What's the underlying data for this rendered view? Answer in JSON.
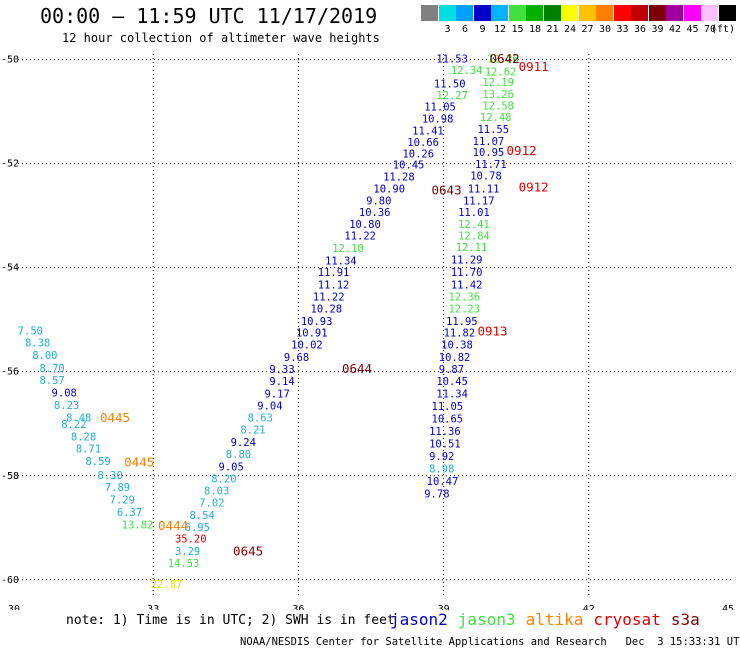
{
  "header": {
    "title": "00:00 – 11:59 UTC 11/17/2019",
    "subtitle": "12 hour collection of altimeter wave heights",
    "units_label": "(ft)"
  },
  "colorbar": [
    {
      "color": "#808080",
      "label": ""
    },
    {
      "color": "#00e0e0",
      "label": "3"
    },
    {
      "color": "#00a0ff",
      "label": "6"
    },
    {
      "color": "#0000c8",
      "label": "9"
    },
    {
      "color": "#00b4ff",
      "label": "12"
    },
    {
      "color": "#40e040",
      "label": "15"
    },
    {
      "color": "#00b000",
      "label": "18"
    },
    {
      "color": "#008000",
      "label": "21"
    },
    {
      "color": "#ffff00",
      "label": "24"
    },
    {
      "color": "#ffc000",
      "label": "27"
    },
    {
      "color": "#ff8000",
      "label": "30"
    },
    {
      "color": "#ff0000",
      "label": "33"
    },
    {
      "color": "#c00000",
      "label": "36"
    },
    {
      "color": "#800000",
      "label": "39"
    },
    {
      "color": "#a000a0",
      "label": "42"
    },
    {
      "color": "#ff00ff",
      "label": "45"
    },
    {
      "color": "#ffc0ff",
      "label": "70"
    },
    {
      "color": "#000000",
      "label": ""
    }
  ],
  "map": {
    "lon_range": [
      30,
      45
    ],
    "lat_range": [
      -60.35,
      -49.95
    ],
    "lon_ticks": [
      "30",
      "33",
      "36",
      "39",
      "42",
      "45"
    ],
    "lat_ticks": [
      "-50",
      "-52",
      "-54",
      "-56",
      "-58",
      "-60"
    ],
    "grid": "dotted"
  },
  "colors": {
    "jason2": "#0000c8",
    "jason3": "#40e040",
    "altika": "#ff8000",
    "cryosat": "#e00000",
    "s3a": "#800000",
    "cyan": "#20b0d0",
    "yellow": "#e0e000"
  },
  "points": [
    {
      "lon": 38.85,
      "lat": -50.0,
      "text": "11.53",
      "c": "jason2"
    },
    {
      "lon": 39.15,
      "lat": -50.22,
      "text": "12.34",
      "c": "jason3"
    },
    {
      "lon": 39.9,
      "lat": -50.0,
      "text": "12.26",
      "c": "jason3"
    },
    {
      "lon": 38.8,
      "lat": -50.48,
      "text": "11.50",
      "c": "jason2"
    },
    {
      "lon": 39.85,
      "lat": -50.25,
      "text": "12.62",
      "c": "jason3"
    },
    {
      "lon": 38.85,
      "lat": -50.7,
      "text": "12.27",
      "c": "jason3"
    },
    {
      "lon": 39.8,
      "lat": -50.45,
      "text": "12.19",
      "c": "jason3"
    },
    {
      "lon": 38.6,
      "lat": -50.92,
      "text": "11.05",
      "c": "jason2"
    },
    {
      "lon": 39.8,
      "lat": -50.68,
      "text": "13.26",
      "c": "jason3"
    },
    {
      "lon": 38.55,
      "lat": -51.15,
      "text": "10.98",
      "c": "jason2"
    },
    {
      "lon": 39.8,
      "lat": -50.9,
      "text": "12.58",
      "c": "jason3"
    },
    {
      "lon": 38.35,
      "lat": -51.38,
      "text": "11.41",
      "c": "jason2"
    },
    {
      "lon": 39.75,
      "lat": -51.12,
      "text": "12.48",
      "c": "jason3"
    },
    {
      "lon": 38.25,
      "lat": -51.6,
      "text": "10.66",
      "c": "jason2"
    },
    {
      "lon": 39.7,
      "lat": -51.35,
      "text": "11.55",
      "c": "jason2"
    },
    {
      "lon": 38.15,
      "lat": -51.82,
      "text": "10.26",
      "c": "jason2"
    },
    {
      "lon": 39.6,
      "lat": -51.58,
      "text": "11.07",
      "c": "jason2"
    },
    {
      "lon": 37.95,
      "lat": -52.04,
      "text": "10.45",
      "c": "jason2"
    },
    {
      "lon": 39.6,
      "lat": -51.8,
      "text": "10.95",
      "c": "jason2"
    },
    {
      "lon": 37.75,
      "lat": -52.27,
      "text": "11.28",
      "c": "jason2"
    },
    {
      "lon": 39.65,
      "lat": -52.03,
      "text": "11.71",
      "c": "jason2"
    },
    {
      "lon": 37.55,
      "lat": -52.5,
      "text": "10.90",
      "c": "jason2"
    },
    {
      "lon": 39.55,
      "lat": -52.25,
      "text": "10.78",
      "c": "jason2"
    },
    {
      "lon": 39.5,
      "lat": -52.5,
      "text": "11.11",
      "c": "jason2"
    },
    {
      "lon": 37.4,
      "lat": -52.73,
      "text": "9.80",
      "c": "jason2"
    },
    {
      "lon": 39.4,
      "lat": -52.73,
      "text": "11.17",
      "c": "jason2"
    },
    {
      "lon": 37.25,
      "lat": -52.95,
      "text": "10.36",
      "c": "jason2"
    },
    {
      "lon": 39.3,
      "lat": -52.95,
      "text": "11.01",
      "c": "jason2"
    },
    {
      "lon": 37.05,
      "lat": -53.18,
      "text": "10.80",
      "c": "jason2"
    },
    {
      "lon": 39.3,
      "lat": -53.18,
      "text": "12.41",
      "c": "jason3"
    },
    {
      "lon": 36.95,
      "lat": -53.4,
      "text": "11.22",
      "c": "jason2"
    },
    {
      "lon": 39.3,
      "lat": -53.4,
      "text": "12.84",
      "c": "jason3"
    },
    {
      "lon": 36.7,
      "lat": -53.64,
      "text": "12.10",
      "c": "jason3"
    },
    {
      "lon": 39.25,
      "lat": -53.62,
      "text": "12.11",
      "c": "jason3"
    },
    {
      "lon": 36.55,
      "lat": -53.88,
      "text": "11.34",
      "c": "jason2"
    },
    {
      "lon": 39.15,
      "lat": -53.86,
      "text": "11.29",
      "c": "jason2"
    },
    {
      "lon": 36.4,
      "lat": -54.1,
      "text": "11.91",
      "c": "jason2"
    },
    {
      "lon": 39.15,
      "lat": -54.1,
      "text": "11.70",
      "c": "jason2"
    },
    {
      "lon": 36.4,
      "lat": -54.34,
      "text": "11.12",
      "c": "jason2"
    },
    {
      "lon": 39.15,
      "lat": -54.34,
      "text": "11.42",
      "c": "jason2"
    },
    {
      "lon": 36.3,
      "lat": -54.57,
      "text": "11.22",
      "c": "jason2"
    },
    {
      "lon": 39.1,
      "lat": -54.57,
      "text": "12.36",
      "c": "jason3"
    },
    {
      "lon": 36.25,
      "lat": -54.8,
      "text": "10.28",
      "c": "jason2"
    },
    {
      "lon": 39.1,
      "lat": -54.8,
      "text": "12.23",
      "c": "jason3"
    },
    {
      "lon": 36.05,
      "lat": -55.04,
      "text": "10.93",
      "c": "jason2"
    },
    {
      "lon": 39.05,
      "lat": -55.04,
      "text": "11.95",
      "c": "jason2"
    },
    {
      "lon": 35.95,
      "lat": -55.27,
      "text": "10.91",
      "c": "jason2"
    },
    {
      "lon": 39.0,
      "lat": -55.27,
      "text": "11.82",
      "c": "jason2"
    },
    {
      "lon": 35.85,
      "lat": -55.5,
      "text": "10.02",
      "c": "jason2"
    },
    {
      "lon": 38.95,
      "lat": -55.5,
      "text": "10.38",
      "c": "jason2"
    },
    {
      "lon": 35.7,
      "lat": -55.74,
      "text": "9.68",
      "c": "jason2"
    },
    {
      "lon": 38.9,
      "lat": -55.74,
      "text": "10.82",
      "c": "jason2"
    },
    {
      "lon": 35.4,
      "lat": -55.97,
      "text": "9.33",
      "c": "jason2"
    },
    {
      "lon": 38.9,
      "lat": -55.97,
      "text": "9.87",
      "c": "jason2"
    },
    {
      "lon": 35.4,
      "lat": -56.2,
      "text": "9.14",
      "c": "jason2"
    },
    {
      "lon": 38.85,
      "lat": -56.2,
      "text": "10.45",
      "c": "jason2"
    },
    {
      "lon": 35.3,
      "lat": -56.44,
      "text": "9.17",
      "c": "jason2"
    },
    {
      "lon": 38.85,
      "lat": -56.44,
      "text": "11.34",
      "c": "jason2"
    },
    {
      "lon": 35.15,
      "lat": -56.67,
      "text": "9.04",
      "c": "jason2"
    },
    {
      "lon": 38.75,
      "lat": -56.68,
      "text": "11.05",
      "c": "jason2"
    },
    {
      "lon": 34.95,
      "lat": -56.9,
      "text": "8.63",
      "c": "cyan"
    },
    {
      "lon": 38.75,
      "lat": -56.92,
      "text": "10.65",
      "c": "jason2"
    },
    {
      "lon": 34.8,
      "lat": -57.13,
      "text": "8.21",
      "c": "cyan"
    },
    {
      "lon": 38.7,
      "lat": -57.16,
      "text": "11.36",
      "c": "jason2"
    },
    {
      "lon": 34.6,
      "lat": -57.37,
      "text": "9.24",
      "c": "jason2"
    },
    {
      "lon": 38.7,
      "lat": -57.4,
      "text": "10.51",
      "c": "jason2"
    },
    {
      "lon": 34.5,
      "lat": -57.6,
      "text": "8.80",
      "c": "cyan"
    },
    {
      "lon": 38.7,
      "lat": -57.64,
      "text": "9.92",
      "c": "jason2"
    },
    {
      "lon": 34.35,
      "lat": -57.84,
      "text": "9.05",
      "c": "jason2"
    },
    {
      "lon": 38.7,
      "lat": -57.88,
      "text": "8.98",
      "c": "cyan"
    },
    {
      "lon": 34.2,
      "lat": -58.07,
      "text": "8.20",
      "c": "cyan"
    },
    {
      "lon": 38.65,
      "lat": -58.12,
      "text": "10.47",
      "c": "jason2"
    },
    {
      "lon": 34.05,
      "lat": -58.3,
      "text": "8.03",
      "c": "cyan"
    },
    {
      "lon": 38.6,
      "lat": -58.36,
      "text": "9.78",
      "c": "jason2"
    },
    {
      "lon": 33.95,
      "lat": -58.53,
      "text": "7.02",
      "c": "cyan"
    },
    {
      "lon": 33.75,
      "lat": -58.77,
      "text": "8.54",
      "c": "cyan"
    },
    {
      "lon": 33.65,
      "lat": -59.0,
      "text": "6.95",
      "c": "cyan"
    },
    {
      "lon": 33.45,
      "lat": -59.23,
      "text": "35.20",
      "c": "cryosat"
    },
    {
      "lon": 33.45,
      "lat": -59.47,
      "text": "3.29",
      "c": "cyan"
    },
    {
      "lon": 33.3,
      "lat": -59.7,
      "text": "14.53",
      "c": "jason3"
    },
    {
      "lon": 32.95,
      "lat": -60.1,
      "text": "22.87",
      "c": "yellow"
    },
    {
      "lon": 30.2,
      "lat": -55.23,
      "text": "7.50",
      "c": "cyan"
    },
    {
      "lon": 30.35,
      "lat": -55.46,
      "text": "8.38",
      "c": "cyan"
    },
    {
      "lon": 30.5,
      "lat": -55.7,
      "text": "8.00",
      "c": "cyan"
    },
    {
      "lon": 30.65,
      "lat": -55.95,
      "text": "8.70",
      "c": "cyan"
    },
    {
      "lon": 30.65,
      "lat": -56.18,
      "text": "8.57",
      "c": "cyan"
    },
    {
      "lon": 30.9,
      "lat": -56.42,
      "text": "9.08",
      "c": "jason2"
    },
    {
      "lon": 30.95,
      "lat": -56.66,
      "text": "8.23",
      "c": "cyan"
    },
    {
      "lon": 31.2,
      "lat": -56.9,
      "text": "8.48",
      "c": "cyan"
    },
    {
      "lon": 31.1,
      "lat": -57.02,
      "text": "8.22",
      "c": "cyan"
    },
    {
      "lon": 31.3,
      "lat": -57.26,
      "text": "8.28",
      "c": "cyan"
    },
    {
      "lon": 31.4,
      "lat": -57.5,
      "text": "8.71",
      "c": "cyan"
    },
    {
      "lon": 31.6,
      "lat": -57.74,
      "text": "8.59",
      "c": "cyan"
    },
    {
      "lon": 31.85,
      "lat": -58.0,
      "text": "8.30",
      "c": "cyan"
    },
    {
      "lon": 32.0,
      "lat": -58.24,
      "text": "7.89",
      "c": "cyan"
    },
    {
      "lon": 32.1,
      "lat": -58.48,
      "text": "7.29",
      "c": "cyan"
    },
    {
      "lon": 32.25,
      "lat": -58.72,
      "text": "6.37",
      "c": "cyan"
    },
    {
      "lon": 32.35,
      "lat": -58.96,
      "text": "13.82",
      "c": "jason3"
    }
  ],
  "time_labels": [
    {
      "lon": 39.95,
      "lat": -50.0,
      "text": "0642",
      "c": "s3a"
    },
    {
      "lon": 40.55,
      "lat": -50.15,
      "text": "0911",
      "c": "cryosat"
    },
    {
      "lon": 40.3,
      "lat": -51.77,
      "text": "0912",
      "c": "cryosat"
    },
    {
      "lon": 38.75,
      "lat": -52.53,
      "text": "0643",
      "c": "s3a"
    },
    {
      "lon": 40.55,
      "lat": -52.47,
      "text": "0912",
      "c": "cryosat"
    },
    {
      "lon": 39.7,
      "lat": -55.24,
      "text": "0913",
      "c": "cryosat"
    },
    {
      "lon": 36.9,
      "lat": -55.96,
      "text": "0644",
      "c": "s3a"
    },
    {
      "lon": 31.9,
      "lat": -56.9,
      "text": "0445",
      "c": "altika"
    },
    {
      "lon": 32.4,
      "lat": -57.75,
      "text": "0445",
      "c": "altika"
    },
    {
      "lon": 33.1,
      "lat": -58.98,
      "text": "0444",
      "c": "altika"
    },
    {
      "lon": 34.65,
      "lat": -59.47,
      "text": "0645",
      "c": "s3a"
    }
  ],
  "note": "note: 1) Time is in UTC; 2) SWH is in feet",
  "legend": [
    {
      "name": "jason2",
      "c": "jason2"
    },
    {
      "name": "jason3",
      "c": "jason3"
    },
    {
      "name": "altika",
      "c": "altika"
    },
    {
      "name": "cryosat",
      "c": "cryosat"
    },
    {
      "name": "s3a",
      "c": "s3a"
    }
  ],
  "footer": "NOAA/NESDIS Center for Satellite Applications and Research   Dec  3 15:33:31 UTC 2019"
}
